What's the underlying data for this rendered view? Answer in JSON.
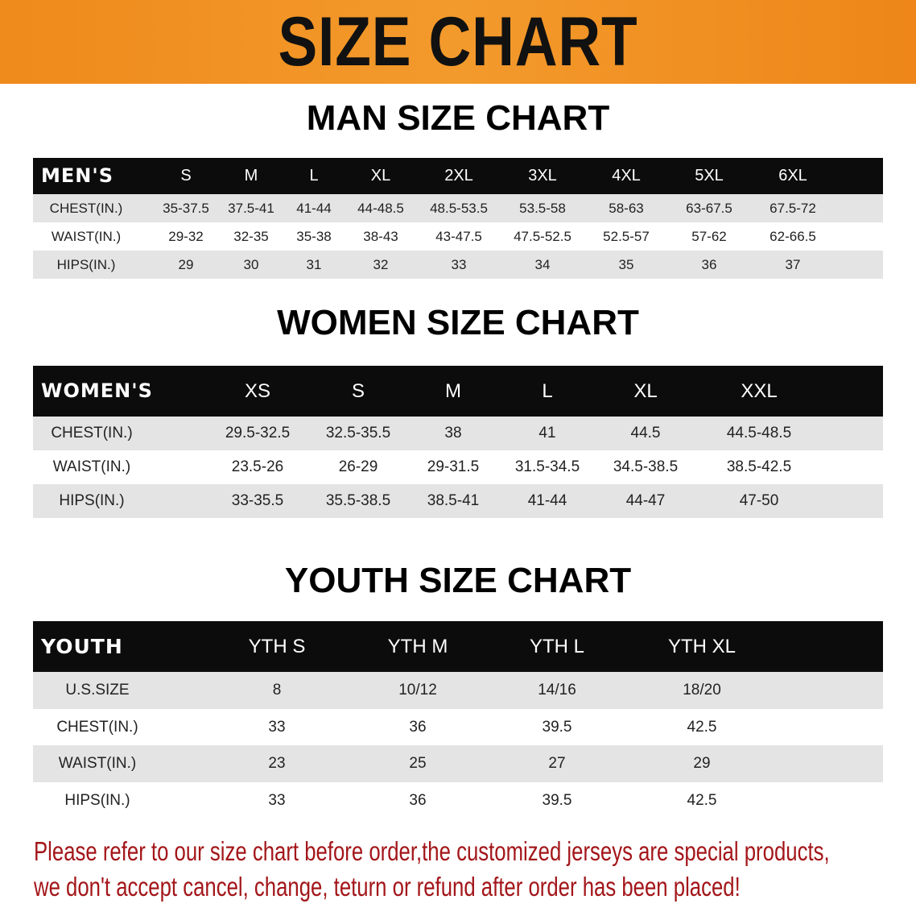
{
  "banner": {
    "title": "SIZE CHART",
    "color": "#ef8a1c"
  },
  "men": {
    "heading": "MAN SIZE CHART",
    "header": [
      "MEN'S",
      "S",
      "M",
      "L",
      "XL",
      "2XL",
      "3XL",
      "4XL",
      "5XL",
      "6XL"
    ],
    "rows": [
      [
        "CHEST(IN.)",
        "35-37.5",
        "37.5-41",
        "41-44",
        "44-48.5",
        "48.5-53.5",
        "53.5-58",
        "58-63",
        "63-67.5",
        "67.5-72"
      ],
      [
        "WAIST(IN.)",
        "29-32",
        "32-35",
        "35-38",
        "38-43",
        "43-47.5",
        "47.5-52.5",
        "52.5-57",
        "57-62",
        "62-66.5"
      ],
      [
        "HIPS(IN.)",
        "29",
        "30",
        "31",
        "32",
        "33",
        "34",
        "35",
        "36",
        "37"
      ]
    ]
  },
  "women": {
    "heading": "WOMEN SIZE CHART",
    "header": [
      "WOMEN'S",
      "XS",
      "S",
      "M",
      "L",
      "XL",
      "XXL"
    ],
    "rows": [
      [
        "CHEST(IN.)",
        "29.5-32.5",
        "32.5-35.5",
        "38",
        "41",
        "44.5",
        "44.5-48.5"
      ],
      [
        "WAIST(IN.)",
        "23.5-26",
        "26-29",
        "29-31.5",
        "31.5-34.5",
        "34.5-38.5",
        "38.5-42.5"
      ],
      [
        "HIPS(IN.)",
        "33-35.5",
        "35.5-38.5",
        "38.5-41",
        "41-44",
        "44-47",
        "47-50"
      ]
    ]
  },
  "youth": {
    "heading": "YOUTH SIZE CHART",
    "header": [
      "YOUTH",
      "YTH S",
      "YTH M",
      "YTH L",
      "YTH XL"
    ],
    "rows": [
      [
        "U.S.SIZE",
        "8",
        "10/12",
        "14/16",
        "18/20"
      ],
      [
        "CHEST(IN.)",
        "33",
        "36",
        "39.5",
        "42.5"
      ],
      [
        "WAIST(IN.)",
        "23",
        "25",
        "27",
        "29"
      ],
      [
        "HIPS(IN.)",
        "33",
        "36",
        "39.5",
        "42.5"
      ]
    ]
  },
  "footer": {
    "line1": "Please refer to our size chart before order,the customized jerseys are special products,",
    "line2": "we don't accept cancel, change, teturn or refund after order has been placed!",
    "color": "#a3161a"
  }
}
